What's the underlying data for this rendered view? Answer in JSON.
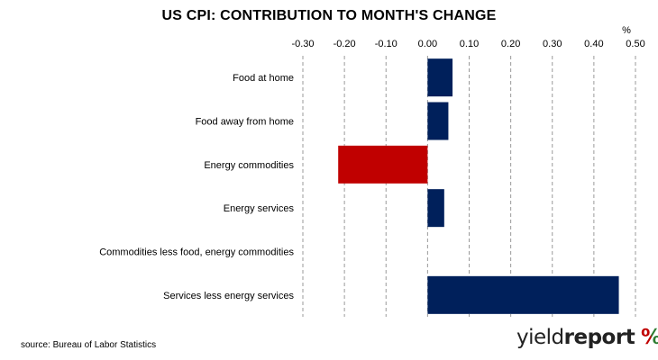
{
  "chart_data": {
    "type": "bar",
    "orientation": "horizontal",
    "title": "US CPI: CONTRIBUTION TO MONTH'S CHANGE",
    "unit_label": "%",
    "x_axis_position": "top",
    "xlim": [
      -0.3,
      0.5
    ],
    "x_ticks": [
      "-0.30",
      "-0.20",
      "-0.10",
      "0.00",
      "0.10",
      "0.20",
      "0.30",
      "0.40",
      "0.50"
    ],
    "x_tick_values": [
      -0.3,
      -0.2,
      -0.1,
      0.0,
      0.1,
      0.2,
      0.3,
      0.4,
      0.5
    ],
    "grid": "vertical dashed",
    "categories": [
      "Food at home",
      "Food away from home",
      "Energy commodities",
      "Energy services",
      "Commodities less food, energy commodities",
      "Services less energy services"
    ],
    "values": [
      0.06,
      0.05,
      -0.215,
      0.04,
      0.0,
      0.46
    ],
    "colors": {
      "positive": "#00205b",
      "negative": "#c00000"
    }
  },
  "footer": {
    "source": "source: Bureau of Labor Statistics",
    "logo_regular": "yield",
    "logo_bold": "report",
    "logo_symbol": "%"
  }
}
